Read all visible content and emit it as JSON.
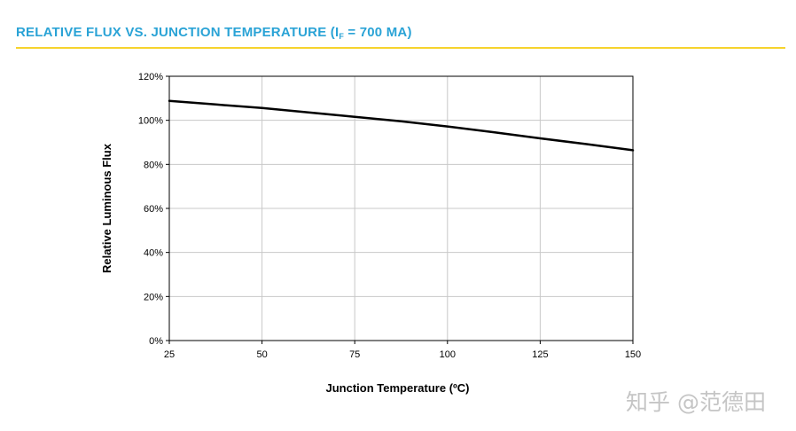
{
  "colors": {
    "title": "#2aa3d6",
    "accent_rule": "#f6d32d",
    "grid": "#c8c8c8",
    "line": "#000000"
  },
  "header": {
    "title_main": "RELATIVE FLUX VS. JUNCTION TEMPERATURE (I",
    "title_sub": "F",
    "title_tail": " = 700 MA)"
  },
  "chart_data": {
    "type": "line",
    "title": "RELATIVE FLUX VS. JUNCTION TEMPERATURE (IF = 700 MA)",
    "xlabel": "Junction Temperature (ºC)",
    "ylabel": "Relative Luminous Flux",
    "xlim": [
      25,
      150
    ],
    "ylim": [
      0,
      120
    ],
    "grid": true,
    "x_ticks": [
      25,
      50,
      75,
      100,
      125,
      150
    ],
    "x_tick_labels": [
      "25",
      "50",
      "75",
      "100",
      "125",
      "150"
    ],
    "y_ticks": [
      0,
      20,
      40,
      60,
      80,
      100,
      120
    ],
    "y_tick_labels": [
      "0%",
      "20%",
      "40%",
      "60%",
      "80%",
      "100%",
      "120%"
    ],
    "series": [
      {
        "name": "Relative Flux",
        "x": [
          25,
          37.5,
          50,
          62.5,
          75,
          87.5,
          100,
          112.5,
          125,
          137.5,
          150
        ],
        "y": [
          108.8,
          107.2,
          105.6,
          103.6,
          101.6,
          99.6,
          97.2,
          94.6,
          91.8,
          89.2,
          86.4
        ]
      }
    ]
  },
  "watermark": "知乎 @范德田"
}
